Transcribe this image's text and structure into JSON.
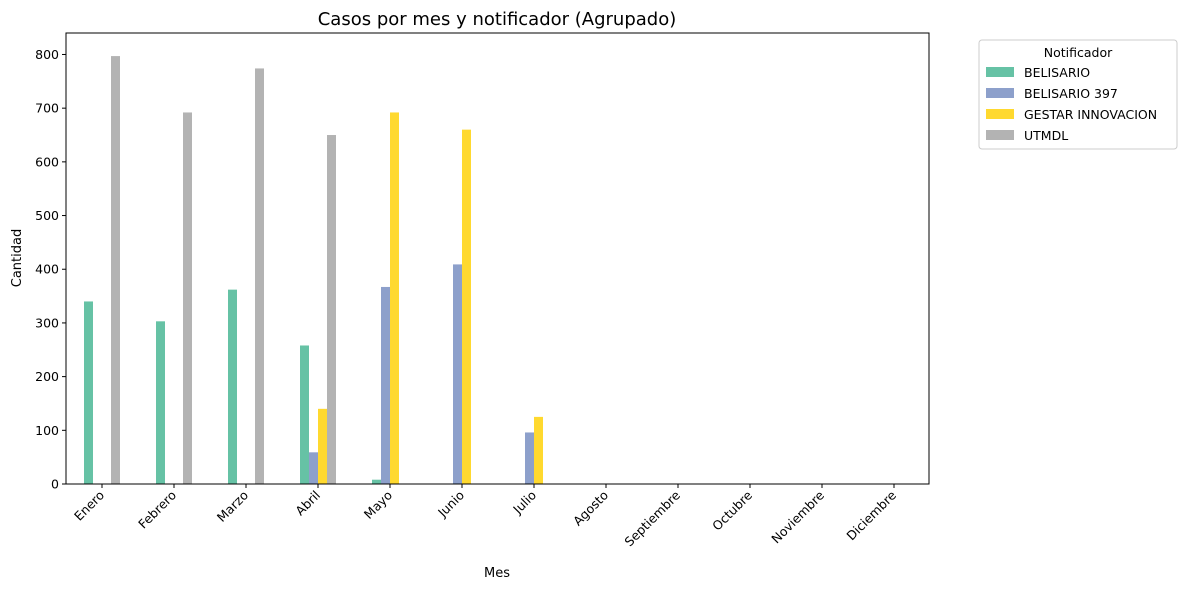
{
  "chart_data": {
    "type": "bar",
    "title": "Casos por mes y notificador (Agrupado)",
    "xlabel": "Mes",
    "ylabel": "Cantidad",
    "ylim": [
      0,
      840
    ],
    "yticks": [
      0,
      100,
      200,
      300,
      400,
      500,
      600,
      700,
      800
    ],
    "grid": false,
    "legend_title": "Notificador",
    "legend_position": "outside-top-right",
    "categories": [
      "Enero",
      "Febrero",
      "Marzo",
      "Abril",
      "Mayo",
      "Junio",
      "Julio",
      "Agosto",
      "Septiembre",
      "Octubre",
      "Noviembre",
      "Diciembre"
    ],
    "series": [
      {
        "name": "BELISARIO",
        "color": "#66c2a5",
        "values": [
          340,
          303,
          362,
          258,
          8,
          0,
          0,
          0,
          0,
          0,
          0,
          0
        ]
      },
      {
        "name": "BELISARIO 397",
        "color": "#8da0cb",
        "values": [
          0,
          0,
          0,
          59,
          367,
          409,
          96,
          0,
          0,
          0,
          0,
          0
        ]
      },
      {
        "name": "GESTAR INNOVACION",
        "color": "#ffd92f",
        "values": [
          0,
          0,
          0,
          140,
          692,
          660,
          125,
          0,
          0,
          0,
          0,
          0
        ]
      },
      {
        "name": "UTMDL",
        "color": "#b3b3b3",
        "values": [
          797,
          692,
          774,
          650,
          0,
          0,
          0,
          0,
          0,
          0,
          0,
          0
        ]
      }
    ]
  }
}
